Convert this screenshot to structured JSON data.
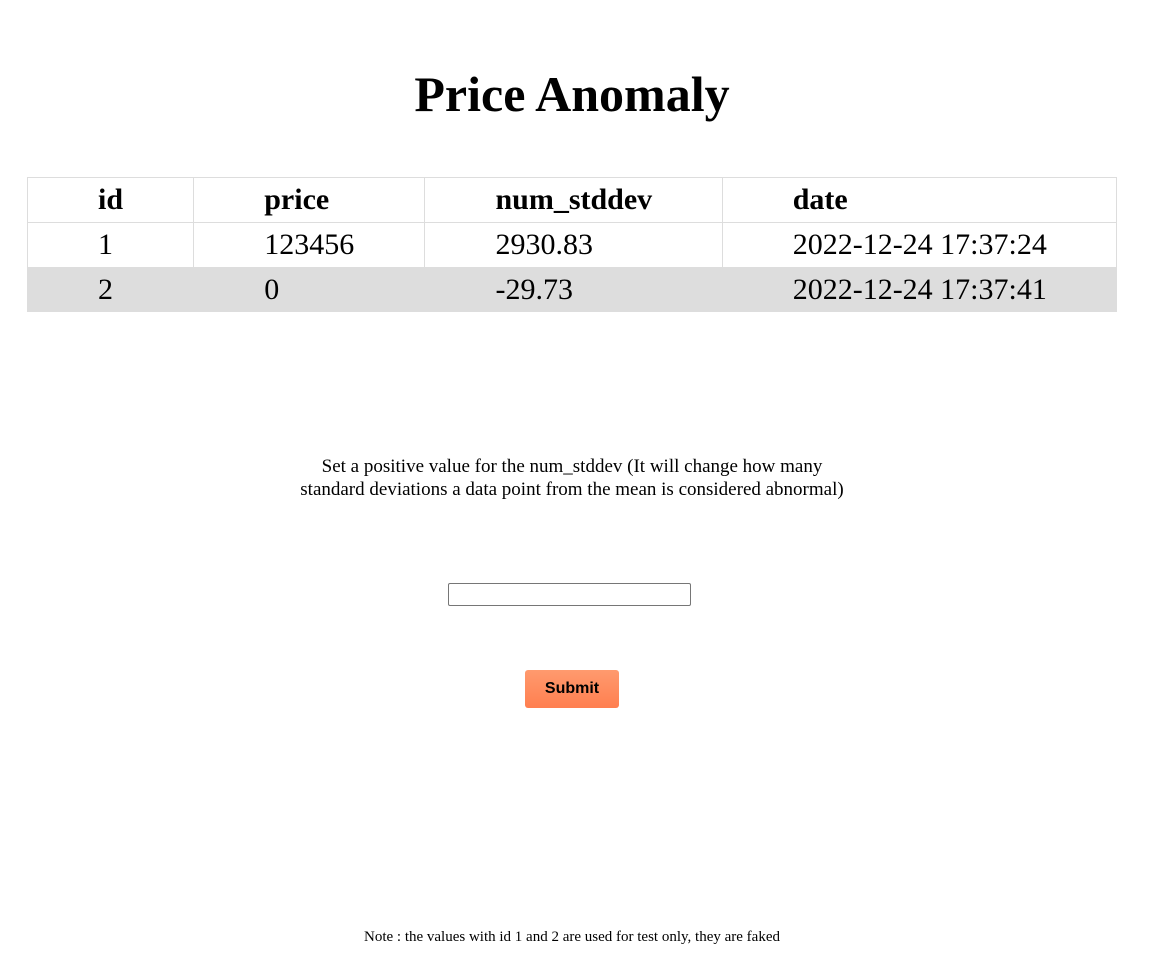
{
  "page": {
    "title": "Price Anomaly"
  },
  "table": {
    "headers": [
      "id",
      "price",
      "num_stddev",
      "date"
    ],
    "rows": [
      {
        "id": "1",
        "price": "123456",
        "num_stddev": "2930.83",
        "date": "2022-12-24 17:37:24"
      },
      {
        "id": "2",
        "price": "0",
        "num_stddev": "-29.73",
        "date": "2022-12-24 17:37:41"
      }
    ]
  },
  "form": {
    "instruction": "Set a positive value for the num_stddev (It will change how many standard deviations a data point from the mean is considered abnormal)",
    "input_value": "",
    "input_placeholder": "",
    "submit_label": "Submit",
    "submit_color": "#ff7f50"
  },
  "footer": {
    "note": "Note : the values with id 1 and 2 are used for test only, they are faked"
  }
}
